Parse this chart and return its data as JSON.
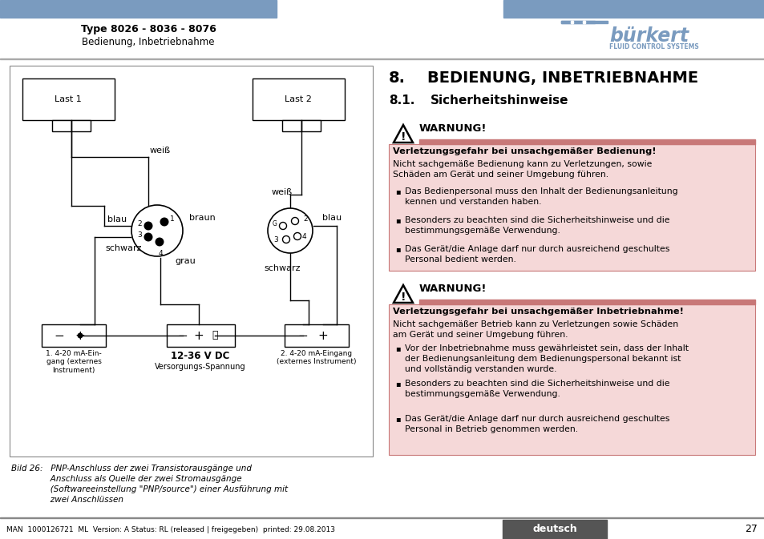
{
  "bg_color": "#ffffff",
  "header_bar_color": "#7a9bbf",
  "header_title": "Type 8026 - 8036 - 8076",
  "header_subtitle": "Bedienung, Inbetriebnahme",
  "footer_lang": "deutsch",
  "footer_page": "27",
  "footer_text": "MAN  1000126721  ML  Version: A Status: RL (released | freigegeben)  printed: 29.08.2013",
  "warn1_title": "WARNUNG!",
  "warn1_header": "Verletzungsgefahr bei unsachgemäßer Bedienung!",
  "warn1_intro": "Nicht sachgemäße Bedienung kann zu Verletzungen, sowie\nSchäden am Gerät und seiner Umgebung führen.",
  "warn1_bullets": [
    "Das Bedienpersonal muss den Inhalt der Bedienungsanleitung\nkennen und verstanden haben.",
    "Besonders zu beachten sind die Sicherheitshinweise und die\nbestimmungsgemäße Verwendung.",
    "Das Gerät/die Anlage darf nur durch ausreichend geschultes\nPersonal bedient werden."
  ],
  "warn2_title": "WARNUNG!",
  "warn2_header": "Verletzungsgefahr bei unsachgemäßer Inbetriebnahme!",
  "warn2_intro": "Nicht sachgemäßer Betrieb kann zu Verletzungen sowie Schäden\nam Gerät und seiner Umgebung führen.",
  "warn2_bullets": [
    "Vor der Inbetriebnahme muss gewährleistet sein, dass der Inhalt\nder Bedienungsanleitung dem Bedienungspersonal bekannt ist\nund vollständig verstanden wurde.",
    "Besonders zu beachten sind die Sicherheitshinweise und die\nbestimmungsgemäße Verwendung.",
    "Das Gerät/die Anlage darf nur durch ausreichend geschultes\nPersonal in Betrieb genommen werden."
  ],
  "diagram_caption_line1": "Bild 26:   PNP-Anschluss der zwei Transistorausgänge und",
  "diagram_caption_line2": "               Anschluss als Quelle der zwei Stromausgänge",
  "diagram_caption_line3": "               (Softwareeinstellung \"PNP/source\") einer Ausführung mit",
  "diagram_caption_line4": "               zwei Anschlüssen",
  "warn_bg": "#f5d8d8",
  "warn_bar_color": "#c87878",
  "text_color": "#000000",
  "separator_color": "#aaaaaa",
  "footer_box_color": "#555555",
  "diagram_border_color": "#888888"
}
